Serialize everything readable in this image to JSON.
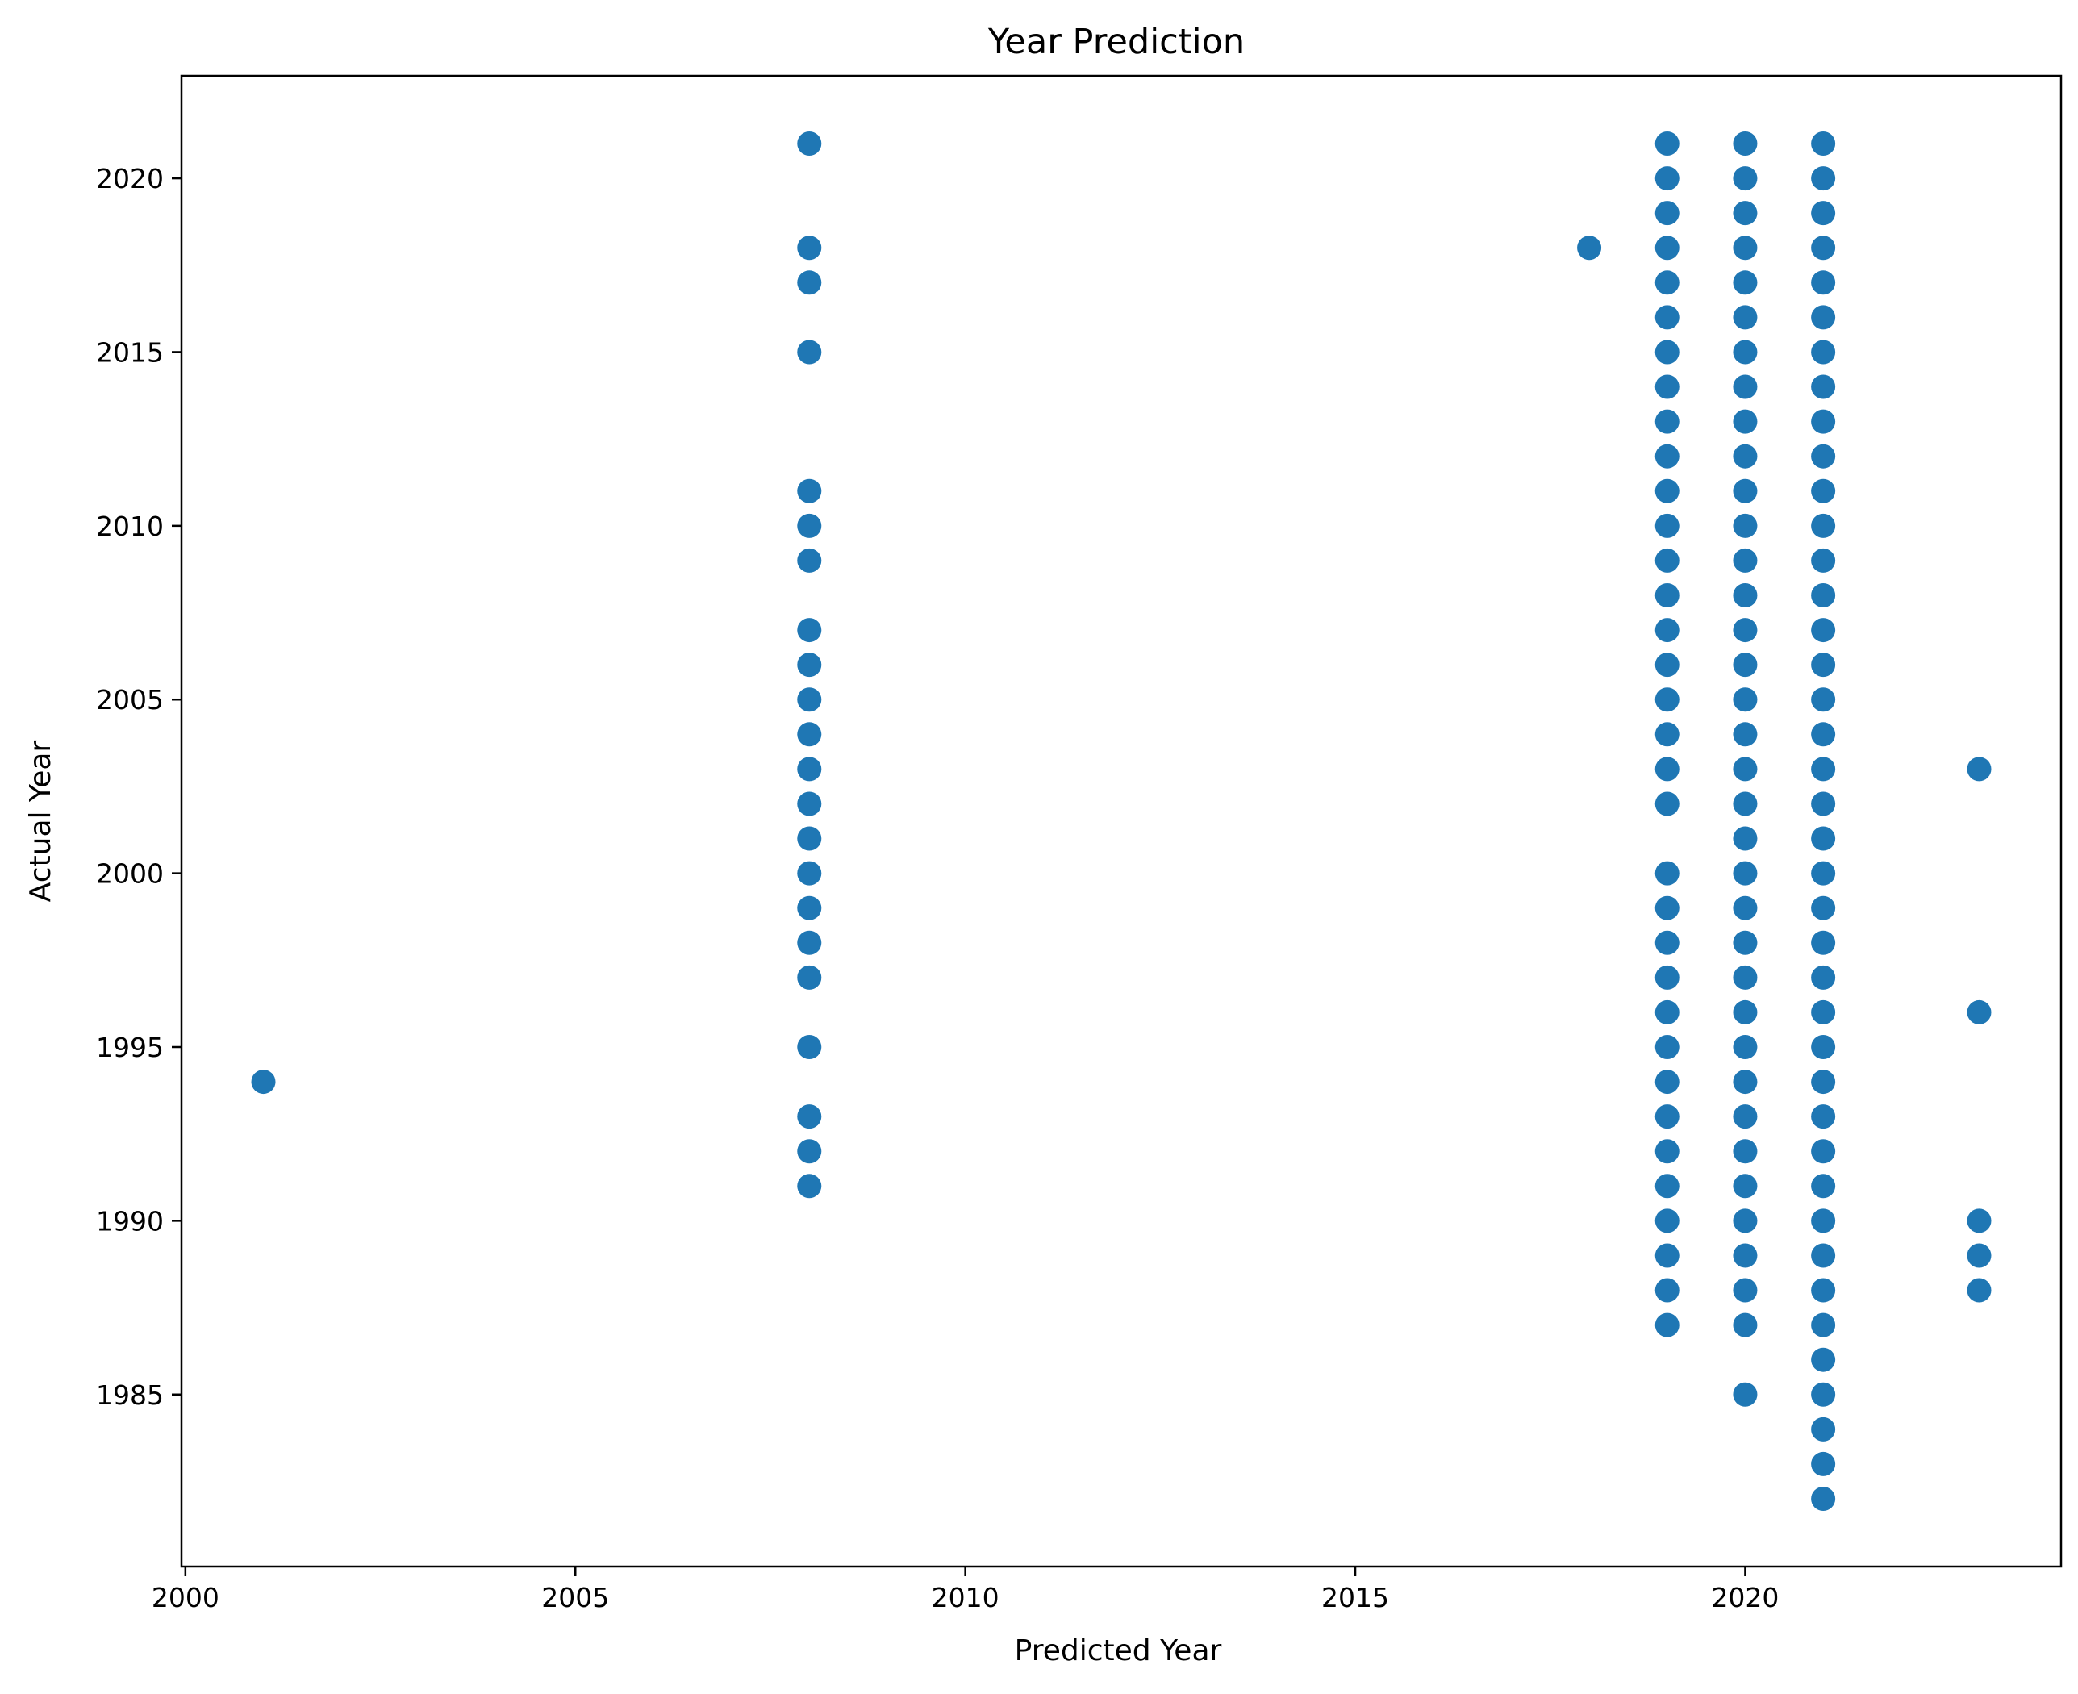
{
  "chart_data": {
    "type": "scatter",
    "title": "Year Prediction",
    "xlabel": "Predicted Year",
    "ylabel": "Actual Year",
    "xlim": [
      1999.95,
      2024.05
    ],
    "ylim": [
      1980.05,
      2022.95
    ],
    "xticks": [
      2000,
      2005,
      2010,
      2015,
      2020
    ],
    "yticks": [
      1985,
      1990,
      1995,
      2000,
      2005,
      2010,
      2015,
      2020
    ],
    "grid": false,
    "legend": "none",
    "marker_color": "#1f77b4",
    "series": [
      {
        "points": [
          [
            2001,
            1994
          ],
          [
            2008,
            2021
          ],
          [
            2008,
            2018
          ],
          [
            2008,
            2017
          ],
          [
            2008,
            2015
          ],
          [
            2008,
            2011
          ],
          [
            2008,
            2010
          ],
          [
            2008,
            2009
          ],
          [
            2008,
            2007
          ],
          [
            2008,
            2006
          ],
          [
            2008,
            2005
          ],
          [
            2008,
            2004
          ],
          [
            2008,
            2003
          ],
          [
            2008,
            2002
          ],
          [
            2008,
            2001
          ],
          [
            2008,
            2000
          ],
          [
            2008,
            1999
          ],
          [
            2008,
            1998
          ],
          [
            2008,
            1997
          ],
          [
            2008,
            1995
          ],
          [
            2008,
            1993
          ],
          [
            2008,
            1992
          ],
          [
            2008,
            1991
          ],
          [
            2018,
            2018
          ],
          [
            2019,
            2021
          ],
          [
            2019,
            2020
          ],
          [
            2019,
            2019
          ],
          [
            2019,
            2018
          ],
          [
            2019,
            2017
          ],
          [
            2019,
            2016
          ],
          [
            2019,
            2015
          ],
          [
            2019,
            2014
          ],
          [
            2019,
            2013
          ],
          [
            2019,
            2012
          ],
          [
            2019,
            2011
          ],
          [
            2019,
            2010
          ],
          [
            2019,
            2009
          ],
          [
            2019,
            2008
          ],
          [
            2019,
            2007
          ],
          [
            2019,
            2006
          ],
          [
            2019,
            2005
          ],
          [
            2019,
            2004
          ],
          [
            2019,
            2003
          ],
          [
            2019,
            2002
          ],
          [
            2019,
            2000
          ],
          [
            2019,
            1999
          ],
          [
            2019,
            1998
          ],
          [
            2019,
            1997
          ],
          [
            2019,
            1996
          ],
          [
            2019,
            1995
          ],
          [
            2019,
            1994
          ],
          [
            2019,
            1993
          ],
          [
            2019,
            1992
          ],
          [
            2019,
            1991
          ],
          [
            2019,
            1990
          ],
          [
            2019,
            1989
          ],
          [
            2019,
            1988
          ],
          [
            2019,
            1987
          ],
          [
            2020,
            2021
          ],
          [
            2020,
            2020
          ],
          [
            2020,
            2019
          ],
          [
            2020,
            2018
          ],
          [
            2020,
            2017
          ],
          [
            2020,
            2016
          ],
          [
            2020,
            2015
          ],
          [
            2020,
            2014
          ],
          [
            2020,
            2013
          ],
          [
            2020,
            2012
          ],
          [
            2020,
            2011
          ],
          [
            2020,
            2010
          ],
          [
            2020,
            2009
          ],
          [
            2020,
            2008
          ],
          [
            2020,
            2007
          ],
          [
            2020,
            2006
          ],
          [
            2020,
            2005
          ],
          [
            2020,
            2004
          ],
          [
            2020,
            2003
          ],
          [
            2020,
            2002
          ],
          [
            2020,
            2001
          ],
          [
            2020,
            2000
          ],
          [
            2020,
            1999
          ],
          [
            2020,
            1998
          ],
          [
            2020,
            1997
          ],
          [
            2020,
            1996
          ],
          [
            2020,
            1995
          ],
          [
            2020,
            1994
          ],
          [
            2020,
            1993
          ],
          [
            2020,
            1992
          ],
          [
            2020,
            1991
          ],
          [
            2020,
            1990
          ],
          [
            2020,
            1989
          ],
          [
            2020,
            1988
          ],
          [
            2020,
            1987
          ],
          [
            2020,
            1985
          ],
          [
            2021,
            2021
          ],
          [
            2021,
            2020
          ],
          [
            2021,
            2019
          ],
          [
            2021,
            2018
          ],
          [
            2021,
            2017
          ],
          [
            2021,
            2016
          ],
          [
            2021,
            2015
          ],
          [
            2021,
            2014
          ],
          [
            2021,
            2013
          ],
          [
            2021,
            2012
          ],
          [
            2021,
            2011
          ],
          [
            2021,
            2010
          ],
          [
            2021,
            2009
          ],
          [
            2021,
            2008
          ],
          [
            2021,
            2007
          ],
          [
            2021,
            2006
          ],
          [
            2021,
            2005
          ],
          [
            2021,
            2004
          ],
          [
            2021,
            2003
          ],
          [
            2021,
            2002
          ],
          [
            2021,
            2001
          ],
          [
            2021,
            2000
          ],
          [
            2021,
            1999
          ],
          [
            2021,
            1998
          ],
          [
            2021,
            1997
          ],
          [
            2021,
            1996
          ],
          [
            2021,
            1995
          ],
          [
            2021,
            1994
          ],
          [
            2021,
            1993
          ],
          [
            2021,
            1992
          ],
          [
            2021,
            1991
          ],
          [
            2021,
            1990
          ],
          [
            2021,
            1989
          ],
          [
            2021,
            1988
          ],
          [
            2021,
            1987
          ],
          [
            2021,
            1986
          ],
          [
            2021,
            1985
          ],
          [
            2021,
            1984
          ],
          [
            2021,
            1983
          ],
          [
            2021,
            1982
          ],
          [
            2023,
            2003
          ],
          [
            2023,
            1996
          ],
          [
            2023,
            1990
          ],
          [
            2023,
            1989
          ],
          [
            2023,
            1988
          ]
        ]
      }
    ]
  }
}
